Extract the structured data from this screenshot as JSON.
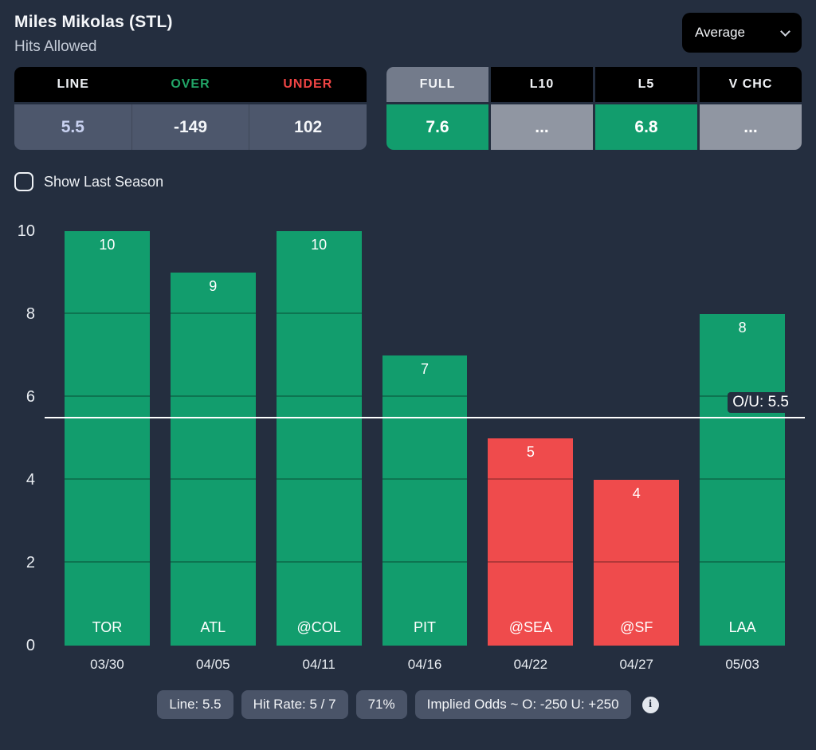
{
  "header": {
    "player_name": "Miles Mikolas (STL)",
    "stat_label": "Hits Allowed",
    "aggregate_selector": "Average"
  },
  "odds_table": {
    "columns": [
      {
        "label": "LINE"
      },
      {
        "label": "OVER"
      },
      {
        "label": "UNDER"
      }
    ],
    "values": {
      "line": "5.5",
      "over": "-149",
      "under": "102"
    }
  },
  "splits_table": {
    "tabs": [
      {
        "label": "FULL",
        "value": "7.6",
        "selected": true,
        "state": "over"
      },
      {
        "label": "L10",
        "value": "...",
        "selected": false,
        "state": "na"
      },
      {
        "label": "L5",
        "value": "6.8",
        "selected": false,
        "state": "over"
      },
      {
        "label": "V CHC",
        "value": "...",
        "selected": false,
        "state": "na"
      }
    ]
  },
  "toggle": {
    "label": "Show Last Season",
    "checked": false
  },
  "chart_data": {
    "type": "bar",
    "categories": [
      "TOR",
      "ATL",
      "@COL",
      "PIT",
      "@SEA",
      "@SF",
      "LAA"
    ],
    "x_dates": [
      "03/30",
      "04/05",
      "04/11",
      "04/16",
      "04/22",
      "04/27",
      "05/03"
    ],
    "values": [
      10,
      9,
      10,
      7,
      5,
      4,
      8
    ],
    "line": 5.5,
    "line_label": "O/U: 5.5",
    "ylim": [
      0,
      10
    ],
    "yticks": [
      0,
      2,
      4,
      6,
      8,
      10
    ],
    "over_color": "#129d6d",
    "under_color": "#ef4b4c",
    "legend": "none",
    "grid": "segment-lines-inside-bars-every-2"
  },
  "footer": {
    "badges": [
      "Line: 5.5",
      "Hit Rate: 5 / 7",
      "71%",
      "Implied Odds ~ O: -250 U: +250"
    ],
    "info_icon": "info-circle"
  },
  "colors": {
    "background": "#242e3f",
    "green": "#129d6d",
    "red": "#ef4b4c",
    "over_header_text": "#22a567",
    "under_header_text": "#ef4444",
    "line_value_text": "#c8d1f0",
    "panel_gray": "#4d576c",
    "tab_selected_gray": "#737b8b",
    "muted_cell_gray": "#9096a2",
    "badge_gray": "#4a5468"
  }
}
